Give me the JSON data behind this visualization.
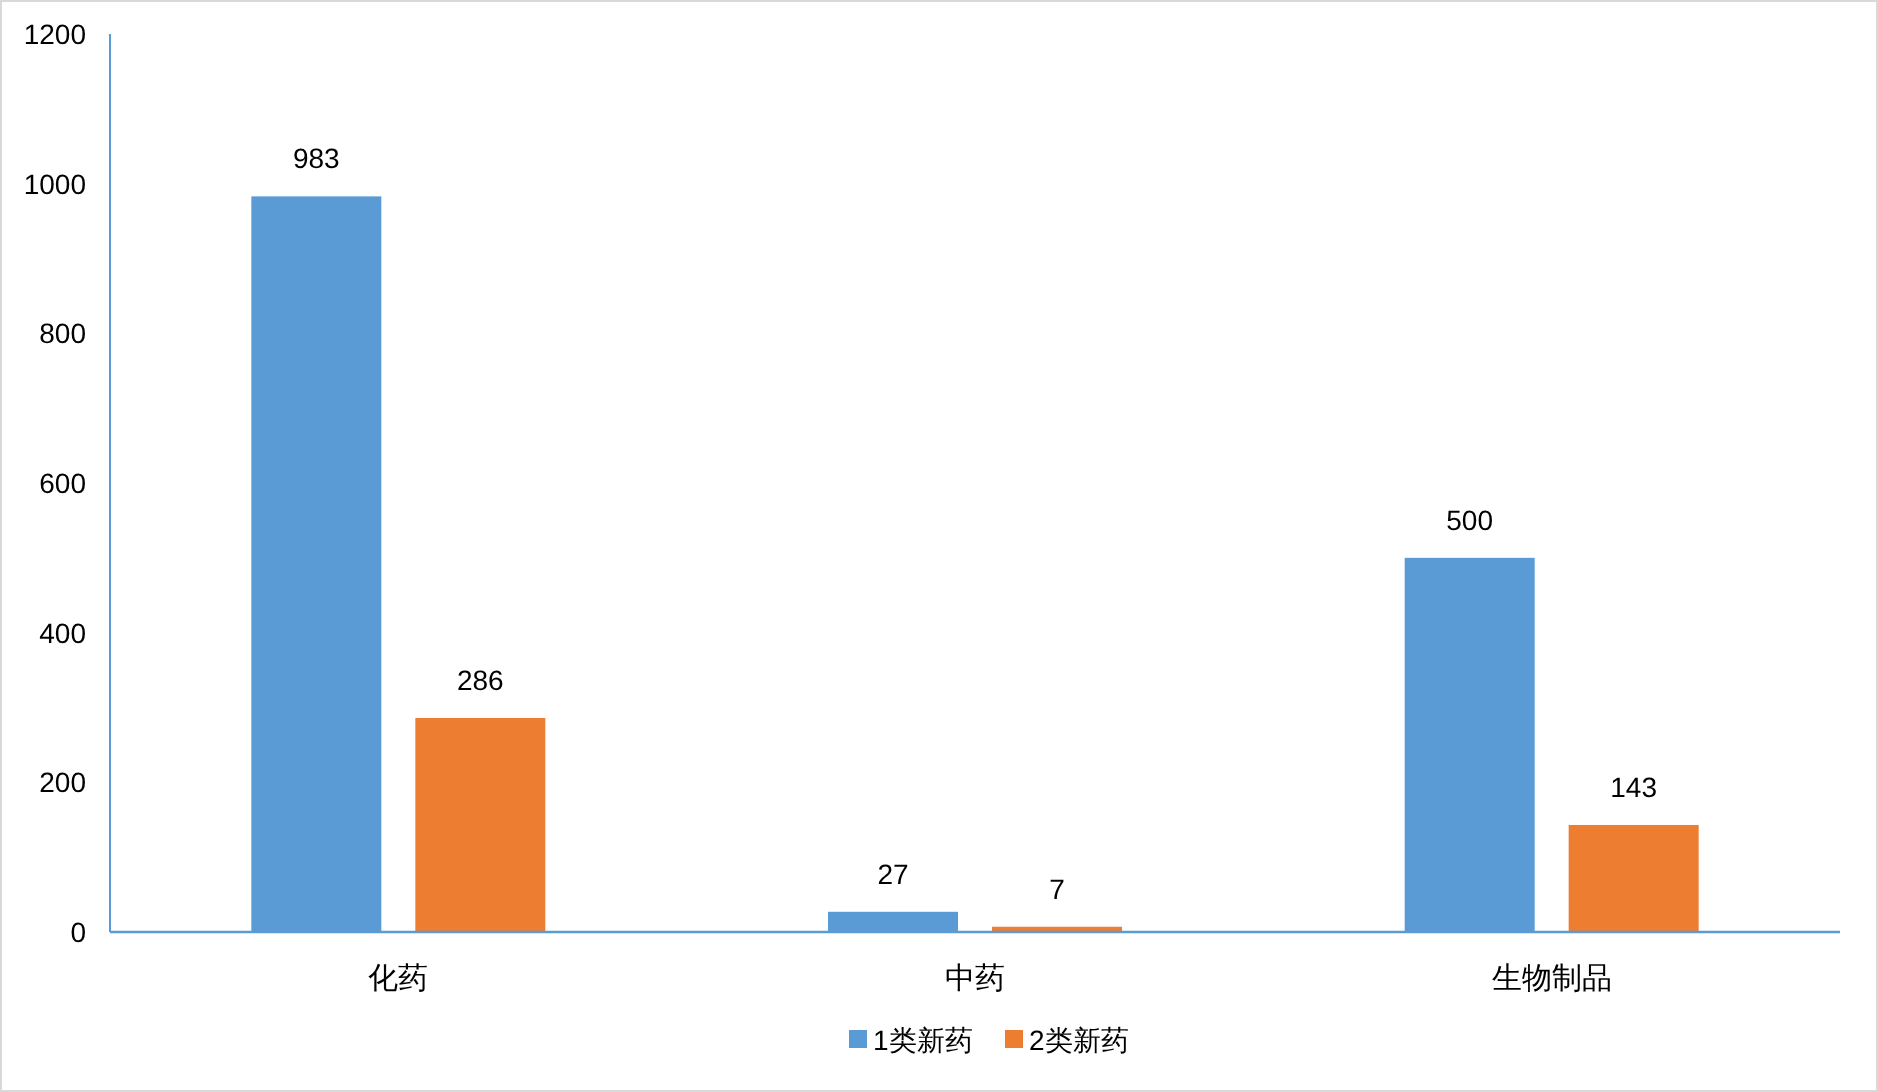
{
  "chart_data": {
    "type": "bar",
    "categories": [
      "化药",
      "中药",
      "生物制品"
    ],
    "series": [
      {
        "name": "1类新药",
        "color": "#5b9bd5",
        "values": [
          983,
          27,
          500
        ]
      },
      {
        "name": "2类新药",
        "color": "#ed7d31",
        "values": [
          286,
          7,
          143
        ]
      }
    ],
    "ylim": [
      0,
      1200
    ],
    "yticks": [
      0,
      200,
      400,
      600,
      800,
      1000,
      1200
    ],
    "data_labels": true,
    "legend": "bottom",
    "grid": false
  }
}
